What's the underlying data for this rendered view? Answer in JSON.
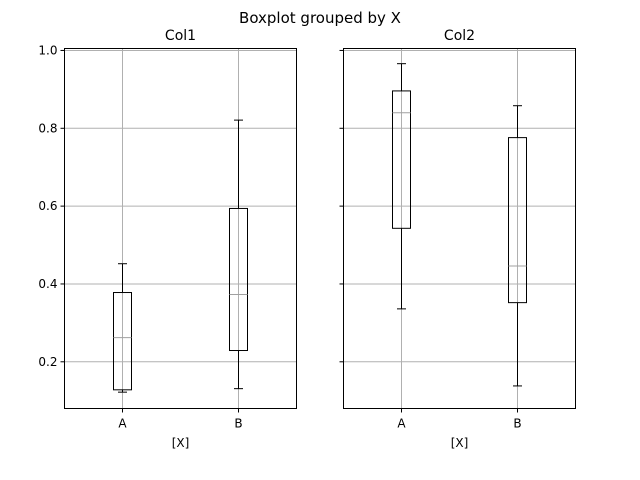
{
  "chart_data": {
    "type": "box",
    "title": "Boxplot grouped by X",
    "grid": true,
    "ylim": [
      0.08,
      1.005
    ],
    "yticks": [
      0.2,
      0.4,
      0.6,
      0.8,
      1.0
    ],
    "ytick_labels": [
      "0.2",
      "0.4",
      "0.6",
      "0.8",
      "1.0"
    ],
    "categories": [
      "A",
      "B"
    ],
    "xlabel": "[X]",
    "colors": {
      "box": "#000000",
      "median": "#a0a0a0",
      "grid": "#b0b0b0"
    },
    "panels": [
      {
        "title": "Col1",
        "boxes": [
          {
            "category": "A",
            "whislo": 0.122,
            "q1": 0.128,
            "median": 0.262,
            "q3": 0.378,
            "whishi": 0.452
          },
          {
            "category": "B",
            "whislo": 0.131,
            "q1": 0.229,
            "median": 0.373,
            "q3": 0.594,
            "whishi": 0.821
          }
        ]
      },
      {
        "title": "Col2",
        "boxes": [
          {
            "category": "A",
            "whislo": 0.336,
            "q1": 0.543,
            "median": 0.84,
            "q3": 0.896,
            "whishi": 0.966
          },
          {
            "category": "B",
            "whislo": 0.138,
            "q1": 0.352,
            "median": 0.446,
            "q3": 0.776,
            "whishi": 0.858
          }
        ]
      }
    ]
  }
}
